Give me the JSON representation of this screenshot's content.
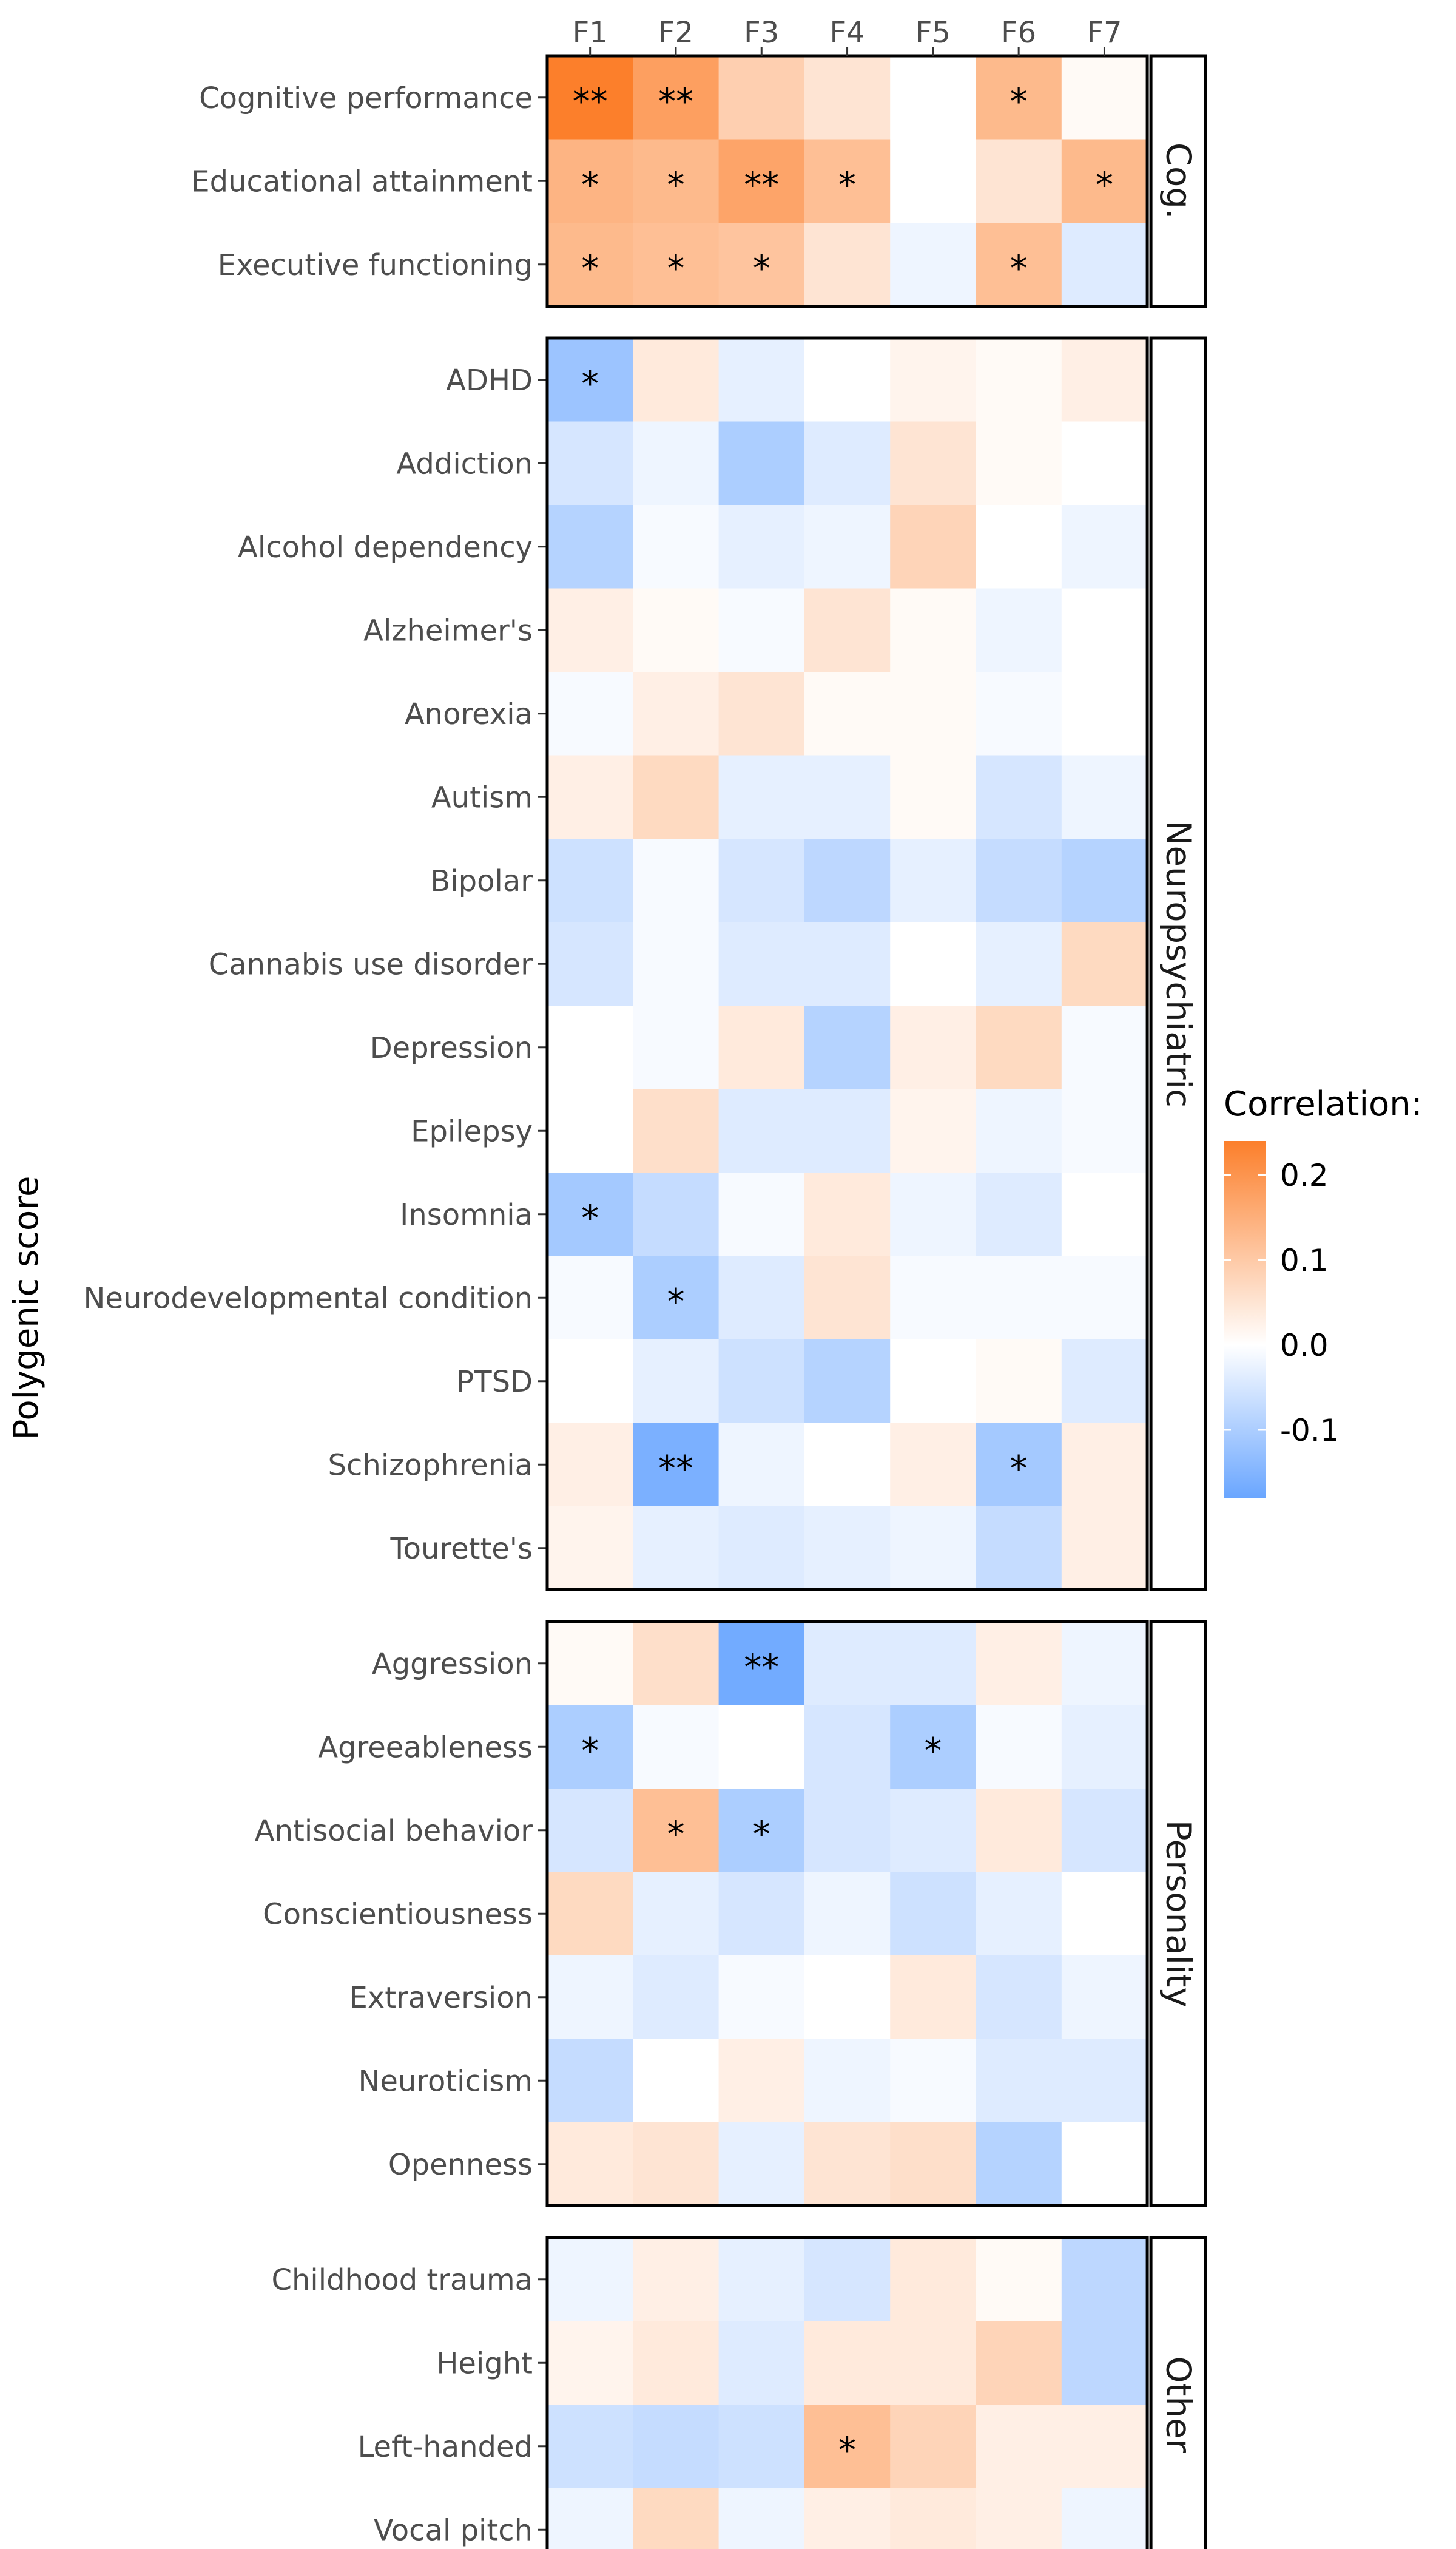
{
  "chart_data": {
    "type": "heatmap",
    "ylabel": "Polygenic score",
    "columns": [
      "F1",
      "F2",
      "F3",
      "F4",
      "F5",
      "F6",
      "F7"
    ],
    "legend": {
      "title": "Correlation:",
      "ticks": [
        0.2,
        0.1,
        0.0,
        -0.1
      ],
      "tick_labels": [
        "0.2",
        "0.1",
        "0.0",
        "-0.1"
      ],
      "range": [
        -0.18,
        0.24
      ],
      "low_color": "#6aa6ff",
      "mid_color": "#ffffff",
      "high_color": "#fc7f2b",
      "placement": "right"
    },
    "panels": [
      {
        "name": "Cog.",
        "rows": [
          {
            "label": "Cognitive performance",
            "values": [
              0.24,
              0.18,
              0.09,
              0.05,
              0.0,
              0.13,
              0.01
            ],
            "sig": [
              "**",
              "**",
              "",
              "",
              "",
              "*",
              ""
            ]
          },
          {
            "label": "Educational attainment",
            "values": [
              0.14,
              0.13,
              0.17,
              0.12,
              0.0,
              0.05,
              0.13
            ],
            "sig": [
              "*",
              "*",
              "**",
              "*",
              "",
              "",
              "*"
            ]
          },
          {
            "label": "Executive functioning",
            "values": [
              0.13,
              0.12,
              0.11,
              0.05,
              -0.02,
              0.12,
              -0.04
            ],
            "sig": [
              "*",
              "*",
              "*",
              "",
              "",
              "*",
              ""
            ]
          }
        ]
      },
      {
        "name": "Neuropsychiatric",
        "rows": [
          {
            "label": "ADHD",
            "values": [
              -0.12,
              0.04,
              -0.03,
              0.0,
              0.02,
              0.01,
              0.03
            ],
            "sig": [
              "*",
              "",
              "",
              "",
              "",
              "",
              ""
            ]
          },
          {
            "label": "Addiction",
            "values": [
              -0.05,
              -0.02,
              -0.1,
              -0.04,
              0.05,
              0.01,
              0.0
            ],
            "sig": [
              "",
              "",
              "",
              "",
              "",
              "",
              ""
            ]
          },
          {
            "label": "Alcohol dependency",
            "values": [
              -0.09,
              -0.01,
              -0.03,
              -0.02,
              0.08,
              0.0,
              -0.02
            ],
            "sig": [
              "",
              "",
              "",
              "",
              "",
              "",
              ""
            ]
          },
          {
            "label": "Alzheimer's",
            "values": [
              0.03,
              0.01,
              -0.01,
              0.05,
              0.01,
              -0.02,
              0.0
            ],
            "sig": [
              "",
              "",
              "",
              "",
              "",
              "",
              ""
            ]
          },
          {
            "label": "Anorexia",
            "values": [
              -0.01,
              0.03,
              0.05,
              0.01,
              0.01,
              -0.01,
              0.0
            ],
            "sig": [
              "",
              "",
              "",
              "",
              "",
              "",
              ""
            ]
          },
          {
            "label": "Autism",
            "values": [
              0.03,
              0.07,
              -0.03,
              -0.03,
              0.01,
              -0.05,
              -0.02
            ],
            "sig": [
              "",
              "",
              "",
              "",
              "",
              "",
              ""
            ]
          },
          {
            "label": "Bipolar",
            "values": [
              -0.06,
              -0.01,
              -0.05,
              -0.08,
              -0.03,
              -0.07,
              -0.09
            ],
            "sig": [
              "",
              "",
              "",
              "",
              "",
              "",
              ""
            ]
          },
          {
            "label": "Cannabis use disorder",
            "values": [
              -0.05,
              -0.01,
              -0.04,
              -0.04,
              0.0,
              -0.03,
              0.07
            ],
            "sig": [
              "",
              "",
              "",
              "",
              "",
              "",
              ""
            ]
          },
          {
            "label": "Depression",
            "values": [
              0.0,
              -0.01,
              0.04,
              -0.09,
              0.03,
              0.07,
              -0.01
            ],
            "sig": [
              "",
              "",
              "",
              "",
              "",
              "",
              ""
            ]
          },
          {
            "label": "Epilepsy",
            "values": [
              0.0,
              0.06,
              -0.04,
              -0.04,
              0.02,
              -0.02,
              -0.01
            ],
            "sig": [
              "",
              "",
              "",
              "",
              "",
              "",
              ""
            ]
          },
          {
            "label": "Insomnia",
            "values": [
              -0.11,
              -0.07,
              -0.01,
              0.04,
              -0.02,
              -0.04,
              0.0
            ],
            "sig": [
              "*",
              "",
              "",
              "",
              "",
              "",
              ""
            ]
          },
          {
            "label": "Neurodevelopmental condition",
            "values": [
              -0.01,
              -0.1,
              -0.04,
              0.05,
              -0.01,
              -0.01,
              -0.01
            ],
            "sig": [
              "",
              "*",
              "",
              "",
              "",
              "",
              ""
            ]
          },
          {
            "label": "PTSD",
            "values": [
              0.0,
              -0.03,
              -0.06,
              -0.09,
              0.0,
              0.01,
              -0.04
            ],
            "sig": [
              "",
              "",
              "",
              "",
              "",
              "",
              ""
            ]
          },
          {
            "label": "Schizophrenia",
            "values": [
              0.03,
              -0.16,
              -0.02,
              0.0,
              0.03,
              -0.11,
              0.03
            ],
            "sig": [
              "",
              "**",
              "",
              "",
              "",
              "*",
              ""
            ]
          },
          {
            "label": "Tourette's",
            "values": [
              0.02,
              -0.03,
              -0.04,
              -0.03,
              -0.02,
              -0.07,
              0.03
            ],
            "sig": [
              "",
              "",
              "",
              "",
              "",
              "",
              ""
            ]
          }
        ]
      },
      {
        "name": "Personality",
        "rows": [
          {
            "label": "Aggression",
            "values": [
              0.01,
              0.06,
              -0.17,
              -0.04,
              -0.04,
              0.03,
              -0.02
            ],
            "sig": [
              "",
              "",
              "**",
              "",
              "",
              "",
              ""
            ]
          },
          {
            "label": "Agreeableness",
            "values": [
              -0.1,
              -0.01,
              0.0,
              -0.05,
              -0.1,
              -0.01,
              -0.03
            ],
            "sig": [
              "*",
              "",
              "",
              "",
              "*",
              "",
              ""
            ]
          },
          {
            "label": "Antisocial behavior",
            "values": [
              -0.05,
              0.12,
              -0.1,
              -0.05,
              -0.04,
              0.04,
              -0.05
            ],
            "sig": [
              "",
              "*",
              "*",
              "",
              "",
              "",
              ""
            ]
          },
          {
            "label": "Conscientiousness",
            "values": [
              0.07,
              -0.03,
              -0.05,
              -0.02,
              -0.06,
              -0.03,
              0.0
            ],
            "sig": [
              "",
              "",
              "",
              "",
              "",
              "",
              ""
            ]
          },
          {
            "label": "Extraversion",
            "values": [
              -0.02,
              -0.04,
              -0.01,
              0.0,
              0.04,
              -0.05,
              -0.02
            ],
            "sig": [
              "",
              "",
              "",
              "",
              "",
              "",
              ""
            ]
          },
          {
            "label": "Neuroticism",
            "values": [
              -0.07,
              0.0,
              0.03,
              -0.02,
              -0.01,
              -0.04,
              -0.04
            ],
            "sig": [
              "",
              "",
              "",
              "",
              "",
              "",
              ""
            ]
          },
          {
            "label": "Openness",
            "values": [
              0.04,
              0.05,
              -0.03,
              0.05,
              0.06,
              -0.09,
              0.0
            ],
            "sig": [
              "",
              "",
              "",
              "",
              "",
              "",
              ""
            ]
          }
        ]
      },
      {
        "name": "Other",
        "rows": [
          {
            "label": "Childhood trauma",
            "values": [
              -0.02,
              0.03,
              -0.03,
              -0.05,
              0.04,
              0.01,
              -0.08
            ],
            "sig": [
              "",
              "",
              "",
              "",
              "",
              "",
              ""
            ]
          },
          {
            "label": "Height",
            "values": [
              0.02,
              0.04,
              -0.04,
              0.04,
              0.04,
              0.08,
              -0.08
            ],
            "sig": [
              "",
              "",
              "",
              "",
              "",
              "",
              ""
            ]
          },
          {
            "label": "Left-handed",
            "values": [
              -0.06,
              -0.07,
              -0.06,
              0.12,
              0.08,
              0.03,
              0.03
            ],
            "sig": [
              "",
              "",
              "",
              "*",
              "",
              "",
              ""
            ]
          },
          {
            "label": "Vocal pitch",
            "values": [
              -0.02,
              0.07,
              -0.02,
              0.03,
              0.04,
              0.03,
              -0.02
            ],
            "sig": [
              "",
              "",
              "",
              "",
              "",
              "",
              ""
            ]
          }
        ]
      }
    ]
  }
}
